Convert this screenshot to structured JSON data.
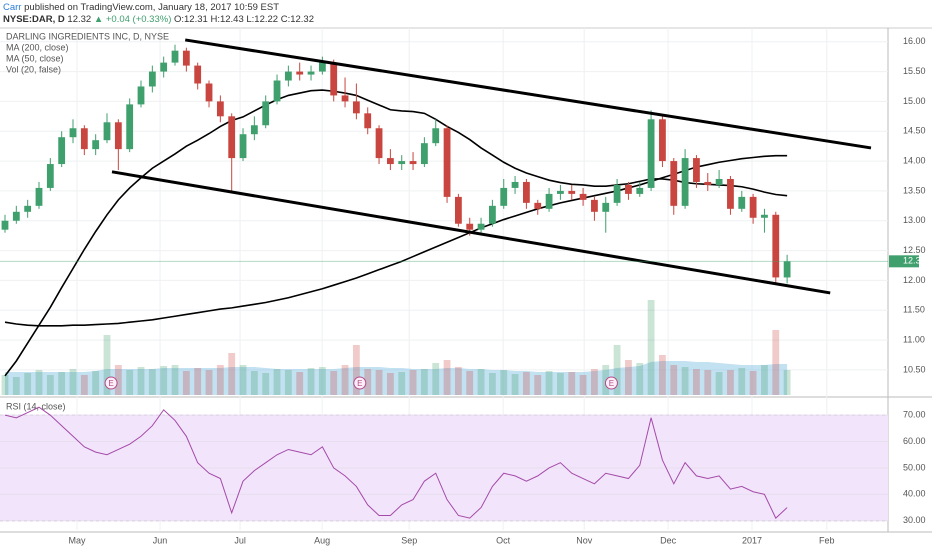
{
  "header": {
    "author": "Carr",
    "published": "published on TradingView.com, January 18, 2017 10:59 EST",
    "symbol": "NYSE:DAR, D",
    "last": "12.32",
    "change": "▲ +0.04 (+0.33%)",
    "open": "O:12.31",
    "high": "H:12.43",
    "low": "L:12.22",
    "close": "C:12.32"
  },
  "chart_data": {
    "type": "candlestick",
    "title": "DARLING INGREDIENTS INC, D, NYSE",
    "up_color": "#3f9f6d",
    "down_color": "#c8463f",
    "candles": [
      [
        12.85,
        13.1,
        12.8,
        13.0
      ],
      [
        13.0,
        13.25,
        12.95,
        13.15
      ],
      [
        13.15,
        13.35,
        13.05,
        13.25
      ],
      [
        13.25,
        13.65,
        13.2,
        13.55
      ],
      [
        13.55,
        14.05,
        13.5,
        13.95
      ],
      [
        13.95,
        14.5,
        13.9,
        14.4
      ],
      [
        14.4,
        14.7,
        14.3,
        14.55
      ],
      [
        14.55,
        14.6,
        14.1,
        14.2
      ],
      [
        14.2,
        14.45,
        14.1,
        14.35
      ],
      [
        14.35,
        14.8,
        14.3,
        14.65
      ],
      [
        14.65,
        14.7,
        13.85,
        14.2
      ],
      [
        14.2,
        15.05,
        14.15,
        14.95
      ],
      [
        14.95,
        15.35,
        14.9,
        15.25
      ],
      [
        15.25,
        15.6,
        15.15,
        15.5
      ],
      [
        15.5,
        15.75,
        15.4,
        15.65
      ],
      [
        15.65,
        15.95,
        15.6,
        15.85
      ],
      [
        15.85,
        15.9,
        15.5,
        15.6
      ],
      [
        15.6,
        15.65,
        15.2,
        15.3
      ],
      [
        15.3,
        15.35,
        14.9,
        15.0
      ],
      [
        15.0,
        15.1,
        14.65,
        14.75
      ],
      [
        14.75,
        14.8,
        13.5,
        14.05
      ],
      [
        14.05,
        14.55,
        14.0,
        14.45
      ],
      [
        14.45,
        14.75,
        14.35,
        14.6
      ],
      [
        14.6,
        15.1,
        14.55,
        15.0
      ],
      [
        15.0,
        15.45,
        14.95,
        15.35
      ],
      [
        15.35,
        15.6,
        15.25,
        15.5
      ],
      [
        15.5,
        15.65,
        15.35,
        15.45
      ],
      [
        15.45,
        15.6,
        15.35,
        15.5
      ],
      [
        15.5,
        15.75,
        15.45,
        15.65
      ],
      [
        15.65,
        15.7,
        15.0,
        15.1
      ],
      [
        15.1,
        15.4,
        14.9,
        15.0
      ],
      [
        15.0,
        15.3,
        14.7,
        14.8
      ],
      [
        14.8,
        14.9,
        14.45,
        14.55
      ],
      [
        14.55,
        14.6,
        13.95,
        14.05
      ],
      [
        14.05,
        14.2,
        13.85,
        13.95
      ],
      [
        13.95,
        14.1,
        13.85,
        14.0
      ],
      [
        14.0,
        14.15,
        13.85,
        13.95
      ],
      [
        13.95,
        14.4,
        13.9,
        14.3
      ],
      [
        14.3,
        14.7,
        14.25,
        14.55
      ],
      [
        14.55,
        14.6,
        13.3,
        13.4
      ],
      [
        13.4,
        13.45,
        12.9,
        12.95
      ],
      [
        12.95,
        13.05,
        12.75,
        12.85
      ],
      [
        12.85,
        13.05,
        12.8,
        12.95
      ],
      [
        12.95,
        13.35,
        12.9,
        13.25
      ],
      [
        13.25,
        13.7,
        13.2,
        13.55
      ],
      [
        13.55,
        13.75,
        13.45,
        13.65
      ],
      [
        13.65,
        13.7,
        13.2,
        13.3
      ],
      [
        13.3,
        13.35,
        13.1,
        13.2
      ],
      [
        13.2,
        13.55,
        13.15,
        13.45
      ],
      [
        13.45,
        13.6,
        13.35,
        13.5
      ],
      [
        13.5,
        13.6,
        13.35,
        13.45
      ],
      [
        13.45,
        13.55,
        13.25,
        13.35
      ],
      [
        13.35,
        13.4,
        13.0,
        13.15
      ],
      [
        13.15,
        13.4,
        12.8,
        13.3
      ],
      [
        13.3,
        13.7,
        13.25,
        13.6
      ],
      [
        13.6,
        13.65,
        13.35,
        13.45
      ],
      [
        13.45,
        13.65,
        13.4,
        13.55
      ],
      [
        13.55,
        14.85,
        13.5,
        14.7
      ],
      [
        14.7,
        14.75,
        13.9,
        14.0
      ],
      [
        14.0,
        14.05,
        13.1,
        13.25
      ],
      [
        13.25,
        14.2,
        13.2,
        14.05
      ],
      [
        14.05,
        14.1,
        13.55,
        13.65
      ],
      [
        13.65,
        13.8,
        13.5,
        13.6
      ],
      [
        13.6,
        13.85,
        13.55,
        13.7
      ],
      [
        13.7,
        13.75,
        13.1,
        13.2
      ],
      [
        13.2,
        13.5,
        13.15,
        13.4
      ],
      [
        13.4,
        13.45,
        12.95,
        13.05
      ],
      [
        13.05,
        13.2,
        12.8,
        13.1
      ],
      [
        13.1,
        13.15,
        11.95,
        12.05
      ],
      [
        12.05,
        12.43,
        11.95,
        12.32
      ]
    ],
    "ma": [
      {
        "name": "MA (200, close)",
        "color": "#000000",
        "values": [
          11.3,
          11.27,
          11.25,
          11.24,
          11.24,
          11.24,
          11.25,
          11.25,
          11.26,
          11.27,
          11.28,
          11.3,
          11.32,
          11.34,
          11.37,
          11.4,
          11.43,
          11.46,
          11.49,
          11.52,
          11.54,
          11.57,
          11.6,
          11.63,
          11.67,
          11.71,
          11.76,
          11.81,
          11.86,
          11.92,
          11.98,
          12.04,
          12.11,
          12.18,
          12.25,
          12.32,
          12.4,
          12.48,
          12.56,
          12.64,
          12.72,
          12.8,
          12.88,
          12.95,
          13.02,
          13.08,
          13.14,
          13.2,
          13.25,
          13.3,
          13.34,
          13.38,
          13.42,
          13.46,
          13.5,
          13.55,
          13.6,
          13.66,
          13.72,
          13.78,
          13.84,
          13.9,
          13.94,
          13.98,
          14.01,
          14.04,
          14.06,
          14.08,
          14.09,
          14.09
        ]
      },
      {
        "name": "MA (50, close)",
        "color": "#000000",
        "values": [
          10.4,
          10.65,
          10.95,
          11.25,
          11.55,
          11.88,
          12.2,
          12.52,
          12.82,
          13.1,
          13.35,
          13.55,
          13.72,
          13.88,
          14.0,
          14.12,
          14.25,
          14.35,
          14.46,
          14.58,
          14.68,
          14.74,
          14.84,
          14.94,
          15.03,
          15.1,
          15.14,
          15.18,
          15.19,
          15.17,
          15.14,
          15.1,
          15.02,
          14.94,
          14.86,
          14.84,
          14.83,
          14.8,
          14.7,
          14.58,
          14.48,
          14.36,
          14.22,
          14.1,
          13.98,
          13.88,
          13.8,
          13.74,
          13.68,
          13.64,
          13.61,
          13.6,
          13.58,
          13.58,
          13.6,
          13.62,
          13.66,
          13.7,
          13.7,
          13.68,
          13.64,
          13.62,
          13.61,
          13.6,
          13.59,
          13.57,
          13.53,
          13.48,
          13.44,
          13.42
        ]
      }
    ],
    "volume": {
      "name": "Vol (20, false)",
      "color": "#8fc9e6",
      "ylim": [
        0,
        10
      ],
      "values": [
        2.0,
        1.8,
        2.2,
        2.5,
        2.0,
        2.3,
        2.6,
        2.0,
        2.4,
        6.0,
        3.0,
        2.5,
        2.8,
        2.6,
        2.9,
        3.0,
        2.4,
        2.7,
        2.5,
        3.0,
        4.2,
        3.0,
        2.4,
        2.2,
        2.6,
        2.5,
        2.3,
        2.7,
        2.8,
        2.4,
        3.0,
        5.0,
        2.6,
        2.5,
        2.2,
        2.3,
        2.5,
        2.6,
        3.2,
        3.5,
        2.8,
        2.4,
        2.6,
        2.2,
        2.5,
        2.1,
        2.3,
        2.0,
        2.4,
        2.2,
        2.3,
        2.0,
        2.6,
        3.0,
        5.0,
        3.5,
        3.2,
        9.5,
        4.0,
        3.0,
        2.8,
        2.6,
        2.5,
        2.3,
        2.5,
        2.7,
        2.4,
        3.0,
        6.5,
        2.5
      ],
      "ma_values": [
        2.3,
        2.3,
        2.3,
        2.3,
        2.3,
        2.3,
        2.3,
        2.3,
        2.4,
        2.6,
        2.6,
        2.6,
        2.6,
        2.6,
        2.7,
        2.7,
        2.7,
        2.7,
        2.7,
        2.7,
        2.8,
        2.8,
        2.8,
        2.7,
        2.6,
        2.6,
        2.6,
        2.6,
        2.6,
        2.6,
        2.7,
        2.8,
        2.8,
        2.8,
        2.7,
        2.7,
        2.6,
        2.6,
        2.6,
        2.7,
        2.7,
        2.6,
        2.6,
        2.5,
        2.5,
        2.4,
        2.4,
        2.3,
        2.3,
        2.3,
        2.3,
        2.3,
        2.4,
        2.5,
        2.7,
        2.8,
        2.9,
        3.3,
        3.4,
        3.4,
        3.4,
        3.3,
        3.3,
        3.2,
        3.1,
        3.0,
        3.0,
        3.0,
        3.1,
        3.1
      ]
    },
    "ylim": [
      10.08,
      16.23
    ],
    "yticks": [
      {
        "value": 10.5,
        "label": "10.50"
      },
      {
        "value": 11,
        "label": "11.00"
      },
      {
        "value": 11.5,
        "label": "11.50"
      },
      {
        "value": 12,
        "label": "12.00"
      },
      {
        "value": 12.5,
        "label": "12.50"
      },
      {
        "value": 13,
        "label": "13.00"
      },
      {
        "value": 13.5,
        "label": "13.50"
      },
      {
        "value": 14,
        "label": "14.00"
      },
      {
        "value": 14.5,
        "label": "14.50"
      },
      {
        "value": 15,
        "label": "15.00"
      },
      {
        "value": 15.5,
        "label": "15.50"
      },
      {
        "value": 16,
        "label": "16.00"
      }
    ],
    "xlim": [
      -0.44,
      77.9
    ],
    "xticks": [
      {
        "value": 6.35,
        "label": "May"
      },
      {
        "value": 13.68,
        "label": "Jun"
      },
      {
        "value": 20.74,
        "label": "Jul"
      },
      {
        "value": 27.98,
        "label": "Aug"
      },
      {
        "value": 35.66,
        "label": "Sep"
      },
      {
        "value": 43.95,
        "label": "Oct"
      },
      {
        "value": 51.1,
        "label": "Nov"
      },
      {
        "value": 58.5,
        "label": "Dec"
      },
      {
        "value": 65.9,
        "label": "2017"
      },
      {
        "value": 72.5,
        "label": "Feb"
      }
    ],
    "last_price": 12.32,
    "last_color": "#3f9f6d",
    "trendlines": [
      {
        "x": [
          15.9,
          76.4
        ],
        "y": [
          16.03,
          14.22
        ]
      },
      {
        "x": [
          9.44,
          72.8
        ],
        "y": [
          13.82,
          11.79
        ]
      }
    ],
    "events": [
      {
        "x": 9.36,
        "label": "E"
      },
      {
        "x": 31.3,
        "label": "E"
      },
      {
        "x": 53.5,
        "label": "E"
      }
    ],
    "rsi": {
      "name": "RSI (14, close)",
      "color": "#a54aa8",
      "band": [
        30,
        70
      ],
      "ylim": [
        26.5,
        76.5
      ],
      "yticks": [
        {
          "value": 30,
          "label": "30.00"
        },
        {
          "value": 40,
          "label": "40.00"
        },
        {
          "value": 50,
          "label": "50.00"
        },
        {
          "value": 60,
          "label": "60.00"
        },
        {
          "value": 70,
          "label": "70.00"
        }
      ],
      "values": [
        70,
        69,
        71,
        73,
        70,
        66,
        62,
        58,
        56,
        55,
        57,
        59,
        62,
        66,
        72,
        68,
        62,
        52,
        48,
        46,
        33,
        45,
        49,
        52,
        55,
        57,
        56,
        55,
        58,
        50,
        47,
        43,
        36,
        32,
        32,
        36,
        38,
        45,
        48,
        38,
        32,
        31,
        35,
        43,
        48,
        47,
        45,
        47,
        50,
        52,
        48,
        46,
        44,
        48,
        47,
        46,
        51,
        69,
        53,
        44,
        52,
        47,
        46,
        47,
        42,
        43,
        41,
        40,
        31,
        35
      ]
    }
  }
}
